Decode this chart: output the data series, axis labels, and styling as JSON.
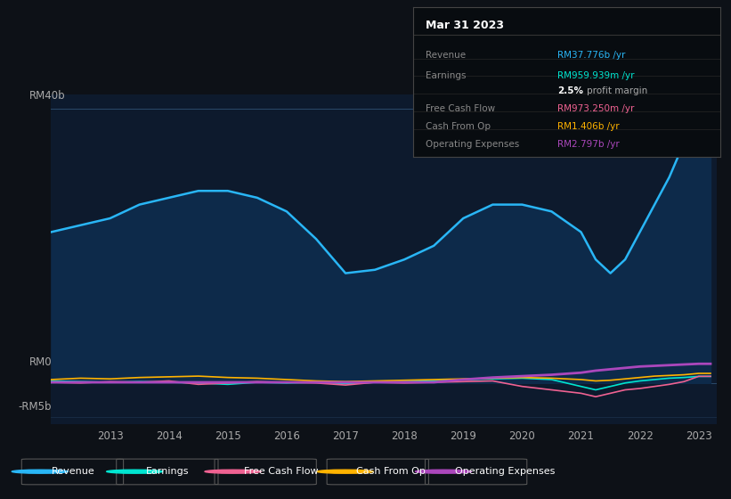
{
  "bg_color": "#0d1117",
  "chart_bg": "#0d1a2d",
  "text_color": "#aaaaaa",
  "years": [
    2012,
    2012.5,
    2013,
    2013.5,
    2014,
    2014.5,
    2015,
    2015.5,
    2016,
    2016.5,
    2017,
    2017.5,
    2018,
    2018.5,
    2019,
    2019.5,
    2020,
    2020.5,
    2021,
    2021.25,
    2021.5,
    2021.75,
    2022,
    2022.25,
    2022.5,
    2022.75,
    2023,
    2023.2
  ],
  "revenue": [
    22,
    23,
    24,
    26,
    27,
    28,
    28,
    27,
    25,
    21,
    16,
    16.5,
    18,
    20,
    24,
    26,
    26,
    25,
    22,
    18,
    16,
    18,
    22,
    26,
    30,
    35,
    38,
    38
  ],
  "earnings": [
    0.3,
    0.2,
    0.1,
    0.2,
    0.1,
    0.0,
    -0.2,
    0.1,
    0.0,
    0.1,
    -0.1,
    0.1,
    0.2,
    0.3,
    0.5,
    0.6,
    0.7,
    0.5,
    -0.5,
    -1.0,
    -0.5,
    0.0,
    0.3,
    0.5,
    0.7,
    0.8,
    0.96,
    0.96
  ],
  "free_cash_flow": [
    0.1,
    0.0,
    0.2,
    0.1,
    0.3,
    -0.2,
    0.0,
    0.2,
    0.1,
    0.0,
    -0.3,
    0.1,
    0.0,
    0.1,
    0.2,
    0.3,
    -0.5,
    -1.0,
    -1.5,
    -2.0,
    -1.5,
    -1.0,
    -0.8,
    -0.5,
    -0.2,
    0.2,
    0.97,
    0.97
  ],
  "cash_from_op": [
    0.5,
    0.7,
    0.6,
    0.8,
    0.9,
    1.0,
    0.8,
    0.7,
    0.5,
    0.3,
    0.2,
    0.3,
    0.4,
    0.5,
    0.6,
    0.7,
    0.8,
    0.7,
    0.5,
    0.3,
    0.4,
    0.6,
    0.8,
    1.0,
    1.1,
    1.2,
    1.4,
    1.4
  ],
  "operating_expenses": [
    0.1,
    0.1,
    0.1,
    0.1,
    0.1,
    0.1,
    0.1,
    0.1,
    0.1,
    0.1,
    0.1,
    0.1,
    0.1,
    0.1,
    0.5,
    0.8,
    1.0,
    1.2,
    1.5,
    1.8,
    2.0,
    2.2,
    2.4,
    2.5,
    2.6,
    2.7,
    2.797,
    2.797
  ],
  "ylim": [
    -6,
    42
  ],
  "xticks": [
    2013,
    2014,
    2015,
    2016,
    2017,
    2018,
    2019,
    2020,
    2021,
    2022,
    2023
  ],
  "revenue_color": "#29b6f6",
  "revenue_fill": "#0d2a4a",
  "earnings_color": "#00e5d1",
  "fcf_color": "#f06292",
  "cashop_color": "#ffb300",
  "opex_color": "#ab47bc",
  "legend_items": [
    "Revenue",
    "Earnings",
    "Free Cash Flow",
    "Cash From Op",
    "Operating Expenses"
  ],
  "legend_colors": [
    "#29b6f6",
    "#00e5d1",
    "#f06292",
    "#ffb300",
    "#ab47bc"
  ],
  "tooltip_title": "Mar 31 2023",
  "tooltip_rows": [
    {
      "label": "Revenue",
      "value": "RM37.776b /yr",
      "color": "#29b6f6"
    },
    {
      "label": "Earnings",
      "value": "RM959.939m /yr",
      "color": "#00e5d1"
    },
    {
      "label": "",
      "value": "2.5% profit margin",
      "color": "#cccccc",
      "bold_part": "2.5%"
    },
    {
      "label": "Free Cash Flow",
      "value": "RM973.250m /yr",
      "color": "#f06292"
    },
    {
      "label": "Cash From Op",
      "value": "RM1.406b /yr",
      "color": "#ffb300"
    },
    {
      "label": "Operating Expenses",
      "value": "RM2.797b /yr",
      "color": "#ab47bc"
    }
  ]
}
